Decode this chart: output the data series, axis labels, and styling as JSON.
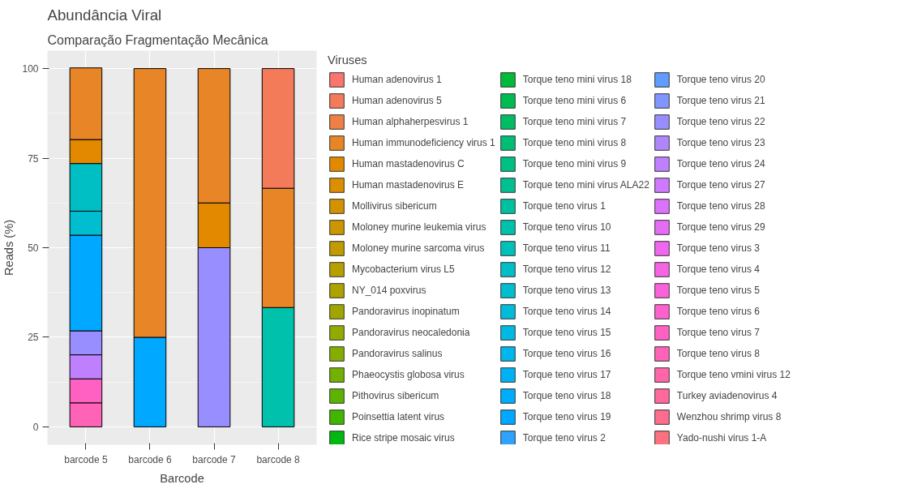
{
  "chart_data": {
    "type": "bar",
    "title": "Abundância Viral",
    "subtitle": "Comparação Fragmentação Mecânica",
    "xlabel": "Barcode",
    "ylabel": "Reads (%)",
    "legend_title": "Viruses",
    "legend": "right",
    "grid": true,
    "stacked": true,
    "categories": [
      "barcode 5",
      "barcode 6",
      "barcode 7",
      "barcode 8"
    ],
    "ylim": [
      -5,
      105
    ],
    "yticks": [
      0,
      25,
      50,
      75,
      100
    ],
    "series": [
      {
        "name": "Yado-nushi virus 1-A",
        "color": "#fc727e",
        "values": [
          null,
          null,
          null,
          null
        ]
      },
      {
        "name": "Wenzhou shrimp virus 8",
        "color": "#fe6d8d",
        "values": [
          null,
          null,
          null,
          null
        ]
      },
      {
        "name": "Turkey aviadenovirus 4",
        "color": "#ff699c",
        "values": [
          null,
          null,
          null,
          null
        ]
      },
      {
        "name": "Torque teno vmini virus 12",
        "color": "#ff66aa",
        "values": [
          null,
          null,
          null,
          null
        ]
      },
      {
        "name": "Torque teno virus 8",
        "color": "#ff63b7",
        "values": [
          6.7,
          null,
          null,
          null
        ]
      },
      {
        "name": "Torque teno virus 7",
        "color": "#ff61c3",
        "values": [
          6.7,
          null,
          null,
          null
        ]
      },
      {
        "name": "Torque teno virus 6",
        "color": "#fe61cf",
        "values": [
          null,
          null,
          null,
          null
        ]
      },
      {
        "name": "Torque teno virus 5",
        "color": "#fa62da",
        "values": [
          null,
          null,
          null,
          null
        ]
      },
      {
        "name": "Torque teno virus 4",
        "color": "#f564e3",
        "values": [
          null,
          null,
          null,
          null
        ]
      },
      {
        "name": "Torque teno virus 3",
        "color": "#ee67ec",
        "values": [
          null,
          null,
          null,
          null
        ]
      },
      {
        "name": "Torque teno virus 29",
        "color": "#e56cf4",
        "values": [
          null,
          null,
          null,
          null
        ]
      },
      {
        "name": "Torque teno virus 28",
        "color": "#db72fb",
        "values": [
          null,
          null,
          null,
          null
        ]
      },
      {
        "name": "Torque teno virus 27",
        "color": "#ce79ff",
        "values": [
          null,
          null,
          null,
          null
        ]
      },
      {
        "name": "Torque teno virus 24",
        "color": "#bf80ff",
        "values": [
          6.7,
          null,
          null,
          null
        ]
      },
      {
        "name": "Torque teno virus 23",
        "color": "#ae87ff",
        "values": [
          null,
          null,
          null,
          null
        ]
      },
      {
        "name": "Torque teno virus 22",
        "color": "#998eff",
        "values": [
          6.7,
          null,
          50,
          null
        ]
      },
      {
        "name": "Torque teno virus 21",
        "color": "#8195ff",
        "values": [
          null,
          null,
          null,
          null
        ]
      },
      {
        "name": "Torque teno virus 20",
        "color": "#619cff",
        "values": [
          null,
          null,
          null,
          null
        ]
      },
      {
        "name": "Torque teno virus 2",
        "color": "#2ea2ff",
        "values": [
          null,
          null,
          null,
          null
        ]
      },
      {
        "name": "Torque teno virus 19",
        "color": "#00a8ff",
        "values": [
          26.7,
          25,
          null,
          null
        ]
      },
      {
        "name": "Torque teno virus 18",
        "color": "#00adfa",
        "values": [
          null,
          null,
          null,
          null
        ]
      },
      {
        "name": "Torque teno virus 17",
        "color": "#00b2f4",
        "values": [
          null,
          null,
          null,
          null
        ]
      },
      {
        "name": "Torque teno virus 16",
        "color": "#00b6ec",
        "values": [
          null,
          null,
          null,
          null
        ]
      },
      {
        "name": "Torque teno virus 15",
        "color": "#00b9e3",
        "values": [
          null,
          null,
          null,
          null
        ]
      },
      {
        "name": "Torque teno virus 14",
        "color": "#00bbda",
        "values": [
          null,
          null,
          null,
          null
        ]
      },
      {
        "name": "Torque teno virus 13",
        "color": "#00becf",
        "values": [
          6.7,
          null,
          null,
          null
        ]
      },
      {
        "name": "Torque teno virus 12",
        "color": "#00bfc4",
        "values": [
          13.3,
          null,
          null,
          null
        ]
      },
      {
        "name": "Torque teno virus 11",
        "color": "#00c0b9",
        "values": [
          null,
          null,
          null,
          null
        ]
      },
      {
        "name": "Torque teno virus 10",
        "color": "#00c1ac",
        "values": [
          null,
          null,
          null,
          33.3
        ]
      },
      {
        "name": "Torque teno virus 1",
        "color": "#00c19f",
        "values": [
          null,
          null,
          null,
          null
        ]
      },
      {
        "name": "Torque teno mini virus ALA22",
        "color": "#00c092",
        "values": [
          null,
          null,
          null,
          null
        ]
      },
      {
        "name": "Torque teno mini virus 9",
        "color": "#00c083",
        "values": [
          null,
          null,
          null,
          null
        ]
      },
      {
        "name": "Torque teno mini virus 8",
        "color": "#00bf74",
        "values": [
          null,
          null,
          null,
          null
        ]
      },
      {
        "name": "Torque teno mini virus 7",
        "color": "#00bd63",
        "values": [
          null,
          null,
          null,
          null
        ]
      },
      {
        "name": "Torque teno mini virus 6",
        "color": "#00bc50",
        "values": [
          null,
          null,
          null,
          null
        ]
      },
      {
        "name": "Torque teno mini virus 18",
        "color": "#00ba38",
        "values": [
          null,
          null,
          null,
          null
        ]
      },
      {
        "name": "Rice stripe mosaic virus",
        "color": "#00b80f",
        "values": [
          null,
          null,
          null,
          null
        ]
      },
      {
        "name": "Poinsettia latent virus",
        "color": "#41b500",
        "values": [
          null,
          null,
          null,
          null
        ]
      },
      {
        "name": "Pithovirus sibericum",
        "color": "#5eb300",
        "values": [
          null,
          null,
          null,
          null
        ]
      },
      {
        "name": "Phaeocystis globosa virus",
        "color": "#73b000",
        "values": [
          null,
          null,
          null,
          null
        ]
      },
      {
        "name": "Pandoravirus salinus",
        "color": "#84ad00",
        "values": [
          null,
          null,
          null,
          null
        ]
      },
      {
        "name": "Pandoravirus neocaledonia",
        "color": "#93aa00",
        "values": [
          null,
          null,
          null,
          null
        ]
      },
      {
        "name": "Pandoravirus inopinatum",
        "color": "#a0a600",
        "values": [
          null,
          null,
          null,
          null
        ]
      },
      {
        "name": "NY_014 poxvirus",
        "color": "#aca300",
        "values": [
          null,
          null,
          null,
          null
        ]
      },
      {
        "name": "Mycobacterium virus L5",
        "color": "#b79f00",
        "values": [
          null,
          null,
          null,
          null
        ]
      },
      {
        "name": "Moloney murine sarcoma virus",
        "color": "#c19b00",
        "values": [
          null,
          null,
          null,
          null
        ]
      },
      {
        "name": "Moloney murine leukemia virus",
        "color": "#ca9700",
        "values": [
          null,
          null,
          null,
          null
        ]
      },
      {
        "name": "Mollivirus sibericum",
        "color": "#d39200",
        "values": [
          null,
          null,
          null,
          null
        ]
      },
      {
        "name": "Human mastadenovirus E",
        "color": "#db8e00",
        "values": [
          null,
          null,
          null,
          null
        ]
      },
      {
        "name": "Human mastadenovirus C",
        "color": "#e28900",
        "values": [
          6.7,
          null,
          12.5,
          null
        ]
      },
      {
        "name": "Human immunodeficiency virus 1",
        "color": "#e88526",
        "values": [
          20,
          75,
          37.5,
          33.3
        ]
      },
      {
        "name": "Human alphaherpesvirus 1",
        "color": "#ee8045",
        "values": [
          null,
          null,
          null,
          null
        ]
      },
      {
        "name": "Human adenovirus 5",
        "color": "#f37b5a",
        "values": [
          null,
          null,
          null,
          33.4
        ]
      },
      {
        "name": "Human adenovirus 1",
        "color": "#f8766d",
        "values": [
          null,
          null,
          null,
          null
        ]
      }
    ]
  }
}
